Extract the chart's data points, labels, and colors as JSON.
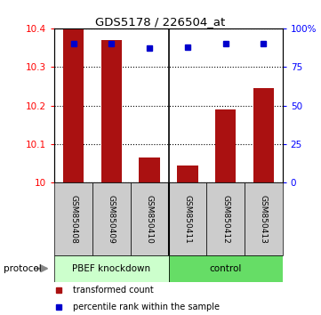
{
  "title": "GDS5178 / 226504_at",
  "categories": [
    "GSM850408",
    "GSM850409",
    "GSM850410",
    "GSM850411",
    "GSM850412",
    "GSM850413"
  ],
  "bar_values": [
    10.4,
    10.37,
    10.065,
    10.045,
    10.19,
    10.245
  ],
  "percentile_values": [
    90,
    90,
    87,
    88,
    90,
    90
  ],
  "bar_color": "#aa1111",
  "percentile_color": "#0000cc",
  "ylim_left": [
    10,
    10.4
  ],
  "ylim_right": [
    0,
    100
  ],
  "yticks_left": [
    10,
    10.1,
    10.2,
    10.3,
    10.4
  ],
  "yticks_right": [
    0,
    25,
    50,
    75,
    100
  ],
  "ytick_labels_right": [
    "0",
    "25",
    "50",
    "75",
    "100%"
  ],
  "group1_label": "PBEF knockdown",
  "group2_label": "control",
  "group1_indices": [
    0,
    1,
    2
  ],
  "group2_indices": [
    3,
    4,
    5
  ],
  "protocol_label": "protocol",
  "legend_bar_label": "transformed count",
  "legend_pct_label": "percentile rank within the sample",
  "group1_color": "#ccffcc",
  "group2_color": "#66dd66",
  "sample_bg_color": "#cccccc",
  "bar_bottom": 10.0,
  "bar_width": 0.55
}
